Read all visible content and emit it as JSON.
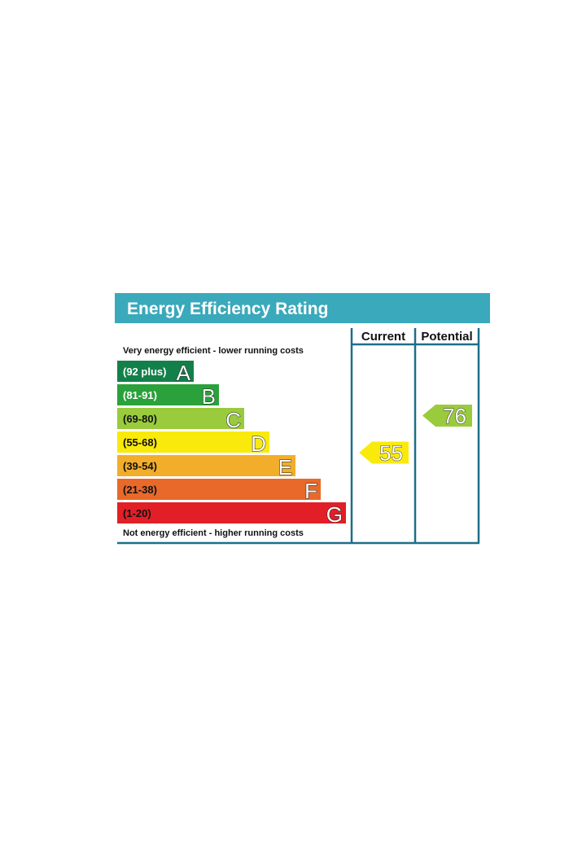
{
  "chart_data": {
    "type": "bar",
    "title": "Energy Efficiency Rating",
    "top_note": "Very energy efficient - lower running costs",
    "bottom_note": "Not energy efficient - higher running costs",
    "columns": [
      "Current",
      "Potential"
    ],
    "bands": [
      {
        "letter": "A",
        "range": "(92 plus)",
        "min": 92,
        "max": 100,
        "color": "#13804a",
        "text_dark": false
      },
      {
        "letter": "B",
        "range": "(81-91)",
        "min": 81,
        "max": 91,
        "color": "#2aa13a",
        "text_dark": false
      },
      {
        "letter": "C",
        "range": "(69-80)",
        "min": 69,
        "max": 80,
        "color": "#9acb3c",
        "text_dark": true
      },
      {
        "letter": "D",
        "range": "(55-68)",
        "min": 55,
        "max": 68,
        "color": "#f9ea0c",
        "text_dark": true
      },
      {
        "letter": "E",
        "range": "(39-54)",
        "min": 39,
        "max": 54,
        "color": "#f2ad2b",
        "text_dark": true
      },
      {
        "letter": "F",
        "range": "(21-38)",
        "min": 21,
        "max": 38,
        "color": "#e8692a",
        "text_dark": true
      },
      {
        "letter": "G",
        "range": "(1-20)",
        "min": 1,
        "max": 20,
        "color": "#e21f26",
        "text_dark": true
      }
    ],
    "current": {
      "value": 55,
      "band": "D",
      "color": "#f9ea0c"
    },
    "potential": {
      "value": 76,
      "band": "C",
      "color": "#9acb3c"
    },
    "header_color": "#3aa9bb",
    "border_color": "#1b6f8a"
  }
}
